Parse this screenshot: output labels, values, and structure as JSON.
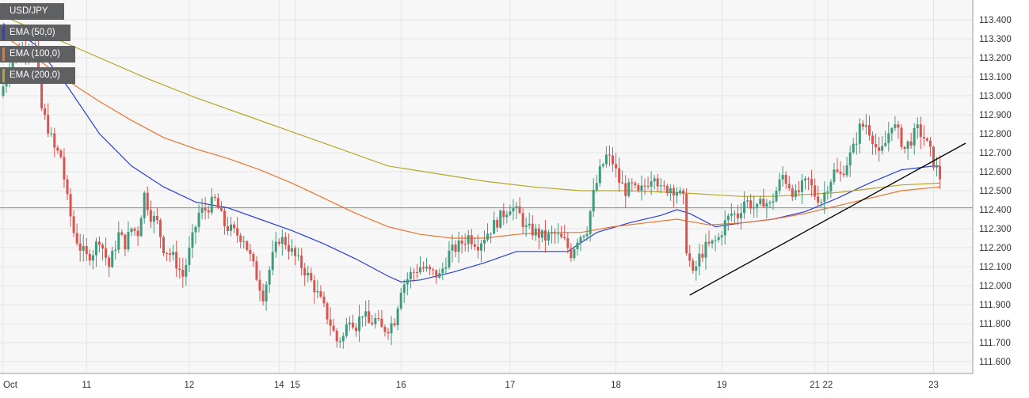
{
  "colors": {
    "up": "#3f9a7d",
    "down": "#d9534f",
    "ema50": "#2a3fd6",
    "ema100": "#e9752d",
    "ema200": "#b5a52a",
    "trendline": "#000000",
    "grid": "#e4e4e4",
    "background": "#f7f7f7"
  },
  "legend": [
    {
      "label": "USD/JPY",
      "color": "#5f6062"
    },
    {
      "label": "EMA (50,0)",
      "color": "#2a3fd6"
    },
    {
      "label": "EMA (100,0)",
      "color": "#e9752d"
    },
    {
      "label": "EMA (200,0)",
      "color": "#b5a52a"
    }
  ],
  "chart_data": {
    "type": "candlestick",
    "symbol": "USD/JPY",
    "grid": true,
    "ylim": [
      111.6,
      113.4
    ],
    "y_ticks": [
      "113.400",
      "113.300",
      "113.200",
      "113.100",
      "113.000",
      "112.900",
      "112.800",
      "112.700",
      "112.600",
      "112.500",
      "112.400",
      "112.300",
      "112.200",
      "112.100",
      "112.000",
      "111.900",
      "111.800",
      "111.700",
      "111.600"
    ],
    "x_ticks": [
      {
        "label": "Oct",
        "index": 0
      },
      {
        "label": "11",
        "index": 26
      },
      {
        "label": "12",
        "index": 58
      },
      {
        "label": "14",
        "index": 86
      },
      {
        "label": "15",
        "index": 91
      },
      {
        "label": "16",
        "index": 124
      },
      {
        "label": "17",
        "index": 158
      },
      {
        "label": "18",
        "index": 191
      },
      {
        "label": "19",
        "index": 224
      },
      {
        "label": "21",
        "index": 253
      },
      {
        "label": "22",
        "index": 257
      },
      {
        "label": "23",
        "index": 290
      }
    ],
    "reference_line": 112.41,
    "candles": [],
    "series": [
      {
        "name": "EMA (50,0)",
        "points": [
          [
            0,
            113.38
          ],
          [
            10,
            113.27
          ],
          [
            20,
            113.05
          ],
          [
            30,
            112.8
          ],
          [
            40,
            112.63
          ],
          [
            50,
            112.52
          ],
          [
            60,
            112.44
          ],
          [
            70,
            112.41
          ],
          [
            80,
            112.35
          ],
          [
            90,
            112.29
          ],
          [
            100,
            112.22
          ],
          [
            110,
            112.14
          ],
          [
            120,
            112.05
          ],
          [
            124,
            112.02
          ],
          [
            130,
            112.03
          ],
          [
            140,
            112.07
          ],
          [
            150,
            112.12
          ],
          [
            160,
            112.18
          ],
          [
            170,
            112.18
          ],
          [
            176,
            112.18
          ],
          [
            185,
            112.28
          ],
          [
            195,
            112.33
          ],
          [
            205,
            112.37
          ],
          [
            210,
            112.4
          ],
          [
            214,
            112.38
          ],
          [
            222,
            112.31
          ],
          [
            230,
            112.33
          ],
          [
            240,
            112.35
          ],
          [
            250,
            112.39
          ],
          [
            260,
            112.46
          ],
          [
            270,
            112.54
          ],
          [
            280,
            112.61
          ],
          [
            290,
            112.63
          ],
          [
            292,
            112.63
          ]
        ]
      },
      {
        "name": "EMA (100,0)",
        "points": [
          [
            0,
            113.32
          ],
          [
            10,
            113.2
          ],
          [
            20,
            113.08
          ],
          [
            30,
            112.97
          ],
          [
            40,
            112.87
          ],
          [
            50,
            112.78
          ],
          [
            60,
            112.72
          ],
          [
            70,
            112.67
          ],
          [
            80,
            112.61
          ],
          [
            90,
            112.54
          ],
          [
            100,
            112.46
          ],
          [
            110,
            112.38
          ],
          [
            120,
            112.31
          ],
          [
            130,
            112.27
          ],
          [
            140,
            112.25
          ],
          [
            150,
            112.25
          ],
          [
            160,
            112.27
          ],
          [
            170,
            112.28
          ],
          [
            180,
            112.28
          ],
          [
            190,
            112.31
          ],
          [
            200,
            112.33
          ],
          [
            210,
            112.35
          ],
          [
            220,
            112.32
          ],
          [
            230,
            112.33
          ],
          [
            240,
            112.35
          ],
          [
            250,
            112.38
          ],
          [
            260,
            112.42
          ],
          [
            270,
            112.46
          ],
          [
            280,
            112.5
          ],
          [
            292,
            112.52
          ]
        ]
      },
      {
        "name": "EMA (200,0)",
        "points": [
          [
            0,
            113.42
          ],
          [
            15,
            113.31
          ],
          [
            30,
            113.2
          ],
          [
            45,
            113.09
          ],
          [
            60,
            112.99
          ],
          [
            75,
            112.9
          ],
          [
            90,
            112.81
          ],
          [
            105,
            112.72
          ],
          [
            120,
            112.63
          ],
          [
            135,
            112.59
          ],
          [
            150,
            112.55
          ],
          [
            165,
            112.52
          ],
          [
            180,
            112.5
          ],
          [
            195,
            112.5
          ],
          [
            210,
            112.49
          ],
          [
            220,
            112.48
          ],
          [
            230,
            112.47
          ],
          [
            240,
            112.47
          ],
          [
            250,
            112.48
          ],
          [
            260,
            112.49
          ],
          [
            270,
            112.51
          ],
          [
            280,
            112.53
          ],
          [
            292,
            112.54
          ]
        ]
      }
    ],
    "trendline": {
      "from": [
        214,
        111.95
      ],
      "to": [
        300,
        112.75
      ]
    }
  }
}
